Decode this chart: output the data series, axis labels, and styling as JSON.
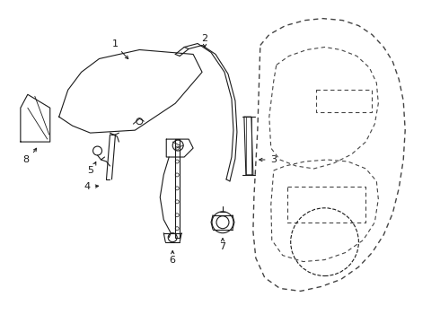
{
  "background_color": "#ffffff",
  "line_color": "#1a1a1a",
  "dashed_color": "#444444",
  "fig_width": 4.9,
  "fig_height": 3.6,
  "dpi": 100
}
